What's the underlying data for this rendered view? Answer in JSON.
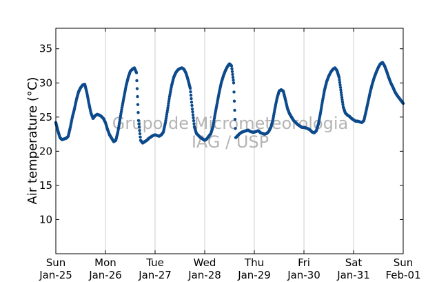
{
  "chart_data": {
    "type": "scatter",
    "title": "",
    "xlabel": "",
    "ylabel": "Air temperature (°C)",
    "watermark": [
      "Grupo de Micrometeorologia",
      "IAG / USP"
    ],
    "x_range": [
      "2014-01-25",
      "2014-02-01"
    ],
    "ylim": [
      5,
      38
    ],
    "yticks": [
      10,
      15,
      20,
      25,
      30,
      35
    ],
    "xticks": [
      {
        "day": "Sun",
        "date": "Jan-25"
      },
      {
        "day": "Mon",
        "date": "Jan-26"
      },
      {
        "day": "Tue",
        "date": "Jan-27"
      },
      {
        "day": "Wed",
        "date": "Jan-28"
      },
      {
        "day": "Thu",
        "date": "Jan-29"
      },
      {
        "day": "Fri",
        "date": "Jan-30"
      },
      {
        "day": "Sat",
        "date": "Jan-31"
      },
      {
        "day": "Sun",
        "date": "Feb-01"
      }
    ],
    "grid": "vertical",
    "marker_color": "#0c4a8c",
    "series": [
      {
        "x": [
          "2014-01-25 00:00",
          "2014-01-25 01:00",
          "2014-01-25 02:00",
          "2014-01-25 03:00",
          "2014-01-25 04:00",
          "2014-01-25 05:00",
          "2014-01-25 06:00",
          "2014-01-25 07:00",
          "2014-01-25 08:00",
          "2014-01-25 09:00",
          "2014-01-25 10:00",
          "2014-01-25 11:00",
          "2014-01-25 12:00",
          "2014-01-25 13:00",
          "2014-01-25 14:00",
          "2014-01-25 15:00",
          "2014-01-25 16:00",
          "2014-01-25 17:00",
          "2014-01-25 18:00",
          "2014-01-25 19:00",
          "2014-01-25 20:00",
          "2014-01-25 21:00",
          "2014-01-25 22:00",
          "2014-01-25 23:00",
          "2014-01-26 00:00",
          "2014-01-26 01:00",
          "2014-01-26 02:00",
          "2014-01-26 03:00",
          "2014-01-26 04:00",
          "2014-01-26 05:00",
          "2014-01-26 06:00",
          "2014-01-26 07:00",
          "2014-01-26 08:00",
          "2014-01-26 09:00",
          "2014-01-26 10:00",
          "2014-01-26 11:00",
          "2014-01-26 12:00",
          "2014-01-26 13:00",
          "2014-01-26 14:00",
          "2014-01-26 15:00",
          "2014-01-26 16:00",
          "2014-01-26 17:00",
          "2014-01-26 18:00",
          "2014-01-26 19:00",
          "2014-01-26 20:00",
          "2014-01-26 21:00",
          "2014-01-26 22:00",
          "2014-01-26 23:00",
          "2014-01-27 00:00",
          "2014-01-27 01:00",
          "2014-01-27 02:00",
          "2014-01-27 03:00",
          "2014-01-27 04:00",
          "2014-01-27 05:00",
          "2014-01-27 06:00",
          "2014-01-27 07:00",
          "2014-01-27 08:00",
          "2014-01-27 09:00",
          "2014-01-27 10:00",
          "2014-01-27 11:00",
          "2014-01-27 12:00",
          "2014-01-27 13:00",
          "2014-01-27 14:00",
          "2014-01-27 15:00",
          "2014-01-27 16:00",
          "2014-01-27 17:00",
          "2014-01-27 18:00",
          "2014-01-27 19:00",
          "2014-01-27 20:00",
          "2014-01-27 21:00",
          "2014-01-27 22:00",
          "2014-01-27 23:00",
          "2014-01-28 00:00",
          "2014-01-28 01:00",
          "2014-01-28 02:00",
          "2014-01-28 03:00",
          "2014-01-28 04:00",
          "2014-01-28 05:00",
          "2014-01-28 06:00",
          "2014-01-28 07:00",
          "2014-01-28 08:00",
          "2014-01-28 09:00",
          "2014-01-28 10:00",
          "2014-01-28 11:00",
          "2014-01-28 12:00",
          "2014-01-28 13:00",
          "2014-01-28 14:00",
          "2014-01-28 15:00",
          "2014-01-28 16:00",
          "2014-01-28 17:00",
          "2014-01-28 18:00",
          "2014-01-28 19:00",
          "2014-01-28 20:00",
          "2014-01-28 21:00",
          "2014-01-28 22:00",
          "2014-01-28 23:00",
          "2014-01-29 00:00",
          "2014-01-29 01:00",
          "2014-01-29 02:00",
          "2014-01-29 03:00",
          "2014-01-29 04:00",
          "2014-01-29 05:00",
          "2014-01-29 06:00",
          "2014-01-29 07:00",
          "2014-01-29 08:00",
          "2014-01-29 09:00",
          "2014-01-29 10:00",
          "2014-01-29 11:00",
          "2014-01-29 12:00",
          "2014-01-29 13:00",
          "2014-01-29 14:00",
          "2014-01-29 15:00",
          "2014-01-29 16:00",
          "2014-01-29 17:00",
          "2014-01-29 18:00",
          "2014-01-29 19:00",
          "2014-01-29 20:00",
          "2014-01-29 21:00",
          "2014-01-29 22:00",
          "2014-01-29 23:00",
          "2014-01-30 00:00",
          "2014-01-30 01:00",
          "2014-01-30 02:00",
          "2014-01-30 03:00",
          "2014-01-30 04:00",
          "2014-01-30 05:00",
          "2014-01-30 06:00",
          "2014-01-30 07:00",
          "2014-01-30 08:00",
          "2014-01-30 09:00",
          "2014-01-30 10:00",
          "2014-01-30 11:00",
          "2014-01-30 12:00",
          "2014-01-30 13:00",
          "2014-01-30 14:00",
          "2014-01-30 15:00",
          "2014-01-30 16:00",
          "2014-01-30 17:00",
          "2014-01-30 18:00",
          "2014-01-30 19:00",
          "2014-01-30 20:00",
          "2014-01-30 21:00",
          "2014-01-30 22:00",
          "2014-01-30 23:00",
          "2014-01-31 00:00",
          "2014-01-31 01:00",
          "2014-01-31 02:00",
          "2014-01-31 03:00",
          "2014-01-31 04:00",
          "2014-01-31 05:00",
          "2014-01-31 06:00",
          "2014-01-31 07:00",
          "2014-01-31 08:00",
          "2014-01-31 09:00",
          "2014-01-31 10:00",
          "2014-01-31 11:00",
          "2014-01-31 12:00",
          "2014-01-31 13:00",
          "2014-01-31 14:00",
          "2014-01-31 15:00",
          "2014-01-31 16:00",
          "2014-01-31 17:00",
          "2014-01-31 18:00",
          "2014-01-31 19:00",
          "2014-01-31 20:00",
          "2014-01-31 21:00",
          "2014-01-31 22:00",
          "2014-01-31 23:00",
          "2014-02-01 00:00"
        ],
        "y": [
          24.2,
          23.0,
          22.0,
          21.7,
          21.8,
          21.9,
          22.2,
          23.5,
          25.0,
          26.2,
          27.6,
          28.7,
          29.3,
          29.7,
          29.8,
          28.6,
          27.0,
          25.6,
          24.8,
          25.2,
          25.4,
          25.3,
          25.1,
          24.8,
          24.2,
          23.2,
          22.4,
          21.9,
          21.4,
          21.6,
          22.8,
          24.6,
          26.4,
          28.0,
          29.6,
          30.8,
          31.7,
          32.0,
          32.2,
          31.5,
          24.5,
          21.6,
          21.2,
          21.4,
          21.6,
          21.9,
          22.1,
          22.3,
          22.4,
          22.3,
          22.2,
          22.4,
          22.8,
          24.2,
          26.0,
          28.0,
          29.6,
          30.8,
          31.5,
          31.9,
          32.1,
          32.2,
          32.0,
          31.4,
          30.4,
          29.2,
          26.2,
          23.6,
          22.6,
          22.3,
          22.0,
          21.8,
          21.6,
          21.8,
          22.2,
          22.6,
          23.6,
          25.4,
          27.0,
          28.6,
          30.0,
          31.0,
          31.8,
          32.4,
          32.8,
          32.5,
          30.0,
          22.0,
          22.3,
          22.6,
          22.8,
          22.9,
          23.0,
          23.1,
          22.9,
          22.8,
          22.8,
          22.9,
          23.0,
          22.7,
          22.6,
          22.5,
          22.6,
          22.9,
          23.5,
          24.6,
          26.3,
          27.8,
          28.8,
          29.0,
          28.8,
          27.6,
          26.3,
          25.5,
          25.0,
          24.5,
          24.2,
          23.9,
          23.7,
          23.5,
          23.5,
          23.4,
          23.3,
          23.1,
          22.8,
          22.7,
          23.0,
          24.0,
          25.6,
          27.4,
          29.0,
          30.2,
          31.0,
          31.6,
          32.0,
          32.2,
          31.8,
          30.8,
          28.6,
          26.5,
          25.6,
          25.3,
          25.1,
          24.8,
          24.6,
          24.4,
          24.4,
          24.3,
          24.2,
          24.5,
          25.8,
          27.2,
          28.6,
          29.8,
          30.8,
          31.6,
          32.3,
          32.8,
          33.0,
          32.5,
          31.7,
          30.8,
          30.0,
          29.4,
          28.7,
          28.2,
          27.8,
          27.4,
          27.0
        ]
      }
    ]
  }
}
